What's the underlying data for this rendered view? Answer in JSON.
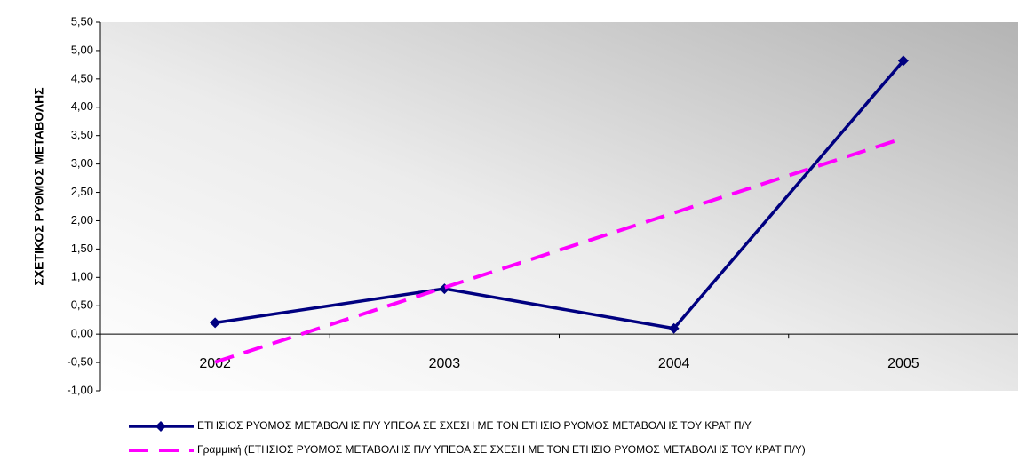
{
  "chart_data": {
    "type": "line",
    "y_label": "ΣΧΕΤΙΚΟΣ ΡΥΘΜΟΣ ΜΕΤΑΒΟΛΗΣ",
    "categories": [
      "2002",
      "2003",
      "2004",
      "2005"
    ],
    "series": [
      {
        "name": "ΕΤΗΣΙΟΣ ΡΥΘΜΟΣ ΜΕΤΑΒΟΛΗΣ Π/Υ ΥΠΕΘΑ ΣΕ ΣΧΕΣΗ ΜΕ ΤΟΝ ΕΤΗΣΙΟ ΡΥΘΜΟΣ ΜΕΤΑΒΟΛΗΣ ΤΟΥ ΚΡΑΤ Π/Υ",
        "color": "#000080",
        "dashed": false,
        "markers": true,
        "values": [
          0.2,
          0.8,
          0.1,
          4.82
        ]
      },
      {
        "name": "Γραμμική (ΕΤΗΣΙΟΣ ΡΥΘΜΟΣ ΜΕΤΑΒΟΛΗΣ Π/Υ ΥΠΕΘΑ ΣΕ ΣΧΕΣΗ ΜΕ ΤΟΝ ΕΤΗΣΙΟ ΡΥΘΜΟΣ ΜΕΤΑΒΟΛΗΣ ΤΟΥ ΚΡΑΤ Π/Υ)",
        "color": "#ff00ff",
        "dashed": true,
        "markers": false,
        "values": [
          -0.494,
          0.822,
          2.138,
          3.454
        ]
      }
    ],
    "ylim": [
      -1,
      5.5
    ],
    "yticks": [
      {
        "value": -1,
        "label": "-1,00"
      },
      {
        "value": -0.5,
        "label": "-0,50"
      },
      {
        "value": 0,
        "label": "0,00"
      },
      {
        "value": 0.5,
        "label": "0,50"
      },
      {
        "value": 1,
        "label": "1,00"
      },
      {
        "value": 1.5,
        "label": "1,50"
      },
      {
        "value": 2,
        "label": "2,00"
      },
      {
        "value": 2.5,
        "label": "2,50"
      },
      {
        "value": 3,
        "label": "3,00"
      },
      {
        "value": 3.5,
        "label": "3,50"
      },
      {
        "value": 4,
        "label": "4,00"
      },
      {
        "value": 4.5,
        "label": "4,50"
      },
      {
        "value": 5,
        "label": "5,00"
      },
      {
        "value": 5.5,
        "label": "5,50"
      }
    ],
    "legend": "bottom"
  }
}
